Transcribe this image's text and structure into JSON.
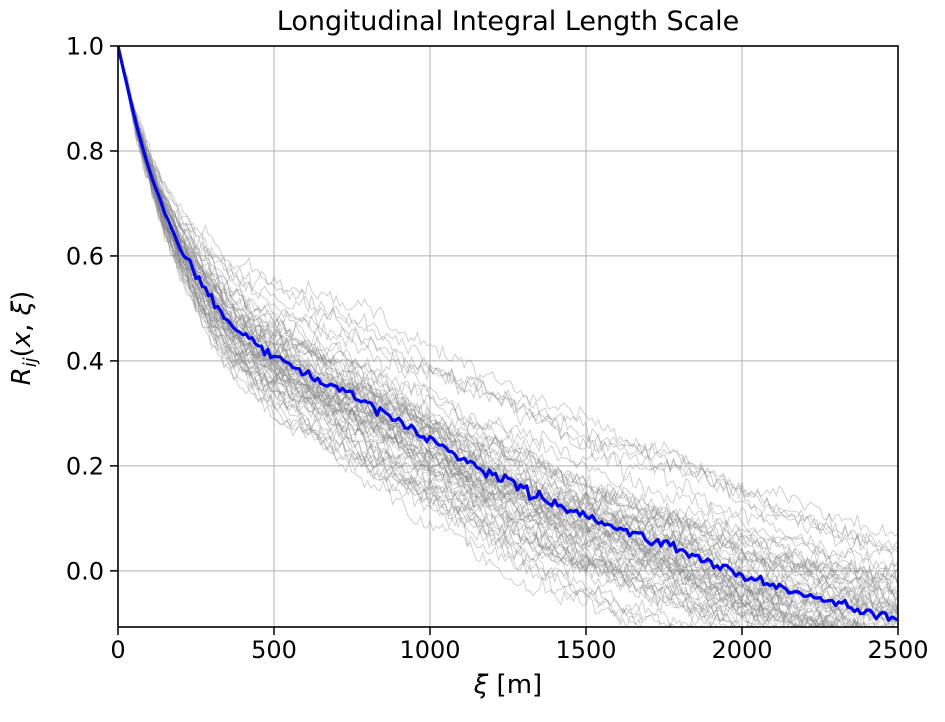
{
  "figure": {
    "title": "Longitudinal Integral Length Scale",
    "xlabel": {
      "symbol": "ξ",
      "unit": " [m]"
    },
    "ylabel": {
      "base": "R",
      "sub": "ij",
      "open": "(",
      "arg1": "x",
      "comma": ", ",
      "arg2": "ξ",
      "close": ")"
    }
  },
  "chart_data": {
    "type": "line",
    "title": "Longitudinal Integral Length Scale",
    "xlabel": "ξ [m]",
    "ylabel": "R_ij(x, ξ)",
    "xlim": [
      0,
      2500
    ],
    "ylim": [
      -0.107,
      1.0
    ],
    "grid": true,
    "grid_color": "#b0b0b0",
    "background": "#ffffff",
    "spine_color": "#000000",
    "xticks": [
      0,
      500,
      1000,
      1500,
      2000,
      2500
    ],
    "xtick_labels": [
      "0",
      "500",
      "1000",
      "1500",
      "2000",
      "2500"
    ],
    "yticks": [
      0.0,
      0.2,
      0.4,
      0.6,
      0.8,
      1.0
    ],
    "ytick_labels": [
      "0.0",
      "0.2",
      "0.4",
      "0.6",
      "0.8",
      "1.0"
    ],
    "series": [
      {
        "name": "ensemble-correlation-curves",
        "kind": "line-ensemble",
        "color": "#808080",
        "opacity": 0.38,
        "line_width": 1,
        "count": 64
      },
      {
        "name": "mean-correlation",
        "kind": "line",
        "color": "#0000ff",
        "line_width": 3.2
      }
    ],
    "mean": {
      "x": [
        0,
        25,
        50,
        75,
        100,
        150,
        200,
        250,
        300,
        350,
        400,
        450,
        500,
        600,
        700,
        800,
        900,
        1000,
        1100,
        1200,
        1300,
        1400,
        1500,
        1600,
        1700,
        1800,
        1900,
        2000,
        2100,
        2200,
        2300,
        2400,
        2500
      ],
      "y": [
        1.0,
        0.935,
        0.87,
        0.815,
        0.765,
        0.68,
        0.615,
        0.563,
        0.518,
        0.478,
        0.448,
        0.428,
        0.41,
        0.378,
        0.348,
        0.318,
        0.285,
        0.25,
        0.215,
        0.185,
        0.158,
        0.128,
        0.105,
        0.082,
        0.063,
        0.042,
        0.015,
        -0.01,
        -0.028,
        -0.045,
        -0.062,
        -0.077,
        -0.09
      ]
    },
    "ensemble": {
      "count": 64,
      "seed": 12,
      "step_m": 10,
      "spread_x": [
        0,
        50,
        150,
        300,
        500,
        800,
        1200,
        1600,
        2000,
        2500
      ],
      "spread_sigma": [
        0,
        0.006,
        0.02,
        0.036,
        0.048,
        0.058,
        0.062,
        0.06,
        0.058,
        0.055
      ],
      "jitter": 0.008,
      "mean_jitter": 0.005
    }
  }
}
